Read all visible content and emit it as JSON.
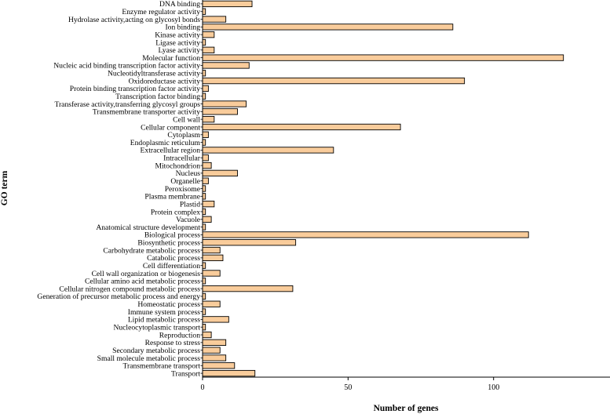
{
  "chart_data": {
    "type": "bar",
    "orientation": "horizontal",
    "title": "",
    "xlabel": "Number of genes",
    "ylabel": "GO term",
    "xlim": [
      0,
      140
    ],
    "xticks": [
      0,
      50,
      100
    ],
    "grid": false,
    "bar_color": "#f9cc9b",
    "edge_color": "#000000",
    "categories": [
      "DNA binding",
      "Enzyme regulator activity",
      "Hydrolase activity,acting on glycosyl bonds",
      "Ion binding",
      "Kinase activity",
      "Ligase activity",
      "Lyase activity",
      "Molecular function",
      "Nucleic acid binding transcription factor activity",
      "Nucleotidyltransferase activity",
      "Oxidoreductase activity",
      "Protein binding transcription factor activity",
      "Transcription factor binding",
      "Transferase activity,transferring glycosyl groups",
      "Transmembrane transporter activity",
      "Cell wall",
      "Cellular component",
      "Cytoplasm",
      "Endoplasmic reticulum",
      "Extracellular region",
      "Intracellular",
      "Mitochondrion",
      "Nucleus",
      "Organelle",
      "Peroxisome",
      "Plasma membrane",
      "Plastid",
      "Protein complex",
      "Vacuole",
      "Anatomical structure development",
      "Biological process",
      "Biosynthetic process",
      "Carbohydrate metabolic process",
      "Catabolic process",
      "Cell differentiation",
      "Cell wall organization or biogenesis",
      "Cellular amino acid metabolic process",
      "Cellular nitrogen compound metabolic process",
      "Generation of precursor metabolic process and energy",
      "Homeostatic process",
      "Immune system process",
      "Lipid metabolic process",
      "Nucleocytoplasmic transport",
      "Reproduction",
      "Response to stress",
      "Secondary metabolic process",
      "Small molecule metabolic process",
      "Transmembrane transport",
      "Transport"
    ],
    "values": [
      17,
      1,
      8,
      86,
      4,
      1,
      4,
      124,
      16,
      1,
      90,
      2,
      1,
      15,
      12,
      4,
      68,
      2,
      1,
      45,
      2,
      3,
      12,
      2,
      1,
      1,
      4,
      1,
      3,
      1,
      112,
      32,
      6,
      7,
      1,
      6,
      1,
      31,
      1,
      6,
      1,
      9,
      1,
      3,
      8,
      6,
      8,
      11,
      18
    ]
  }
}
